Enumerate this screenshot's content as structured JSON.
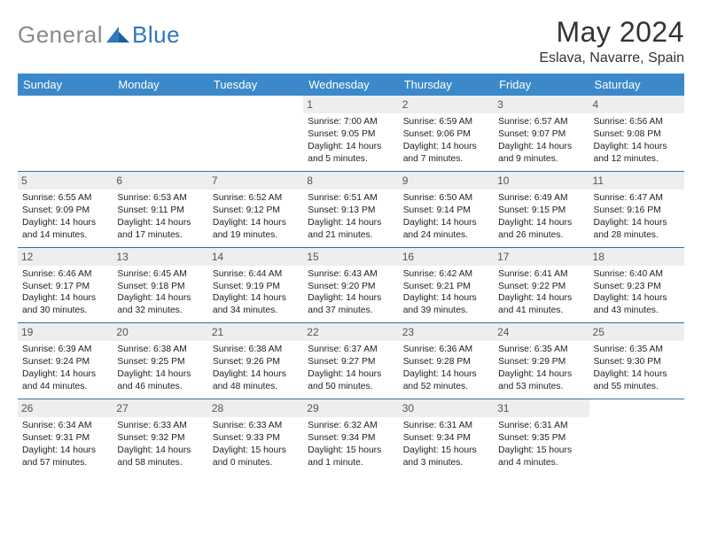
{
  "brand": {
    "part1": "General",
    "part2": "Blue"
  },
  "title": "May 2024",
  "location": "Eslava, Navarre, Spain",
  "dayHeaders": [
    "Sunday",
    "Monday",
    "Tuesday",
    "Wednesday",
    "Thursday",
    "Friday",
    "Saturday"
  ],
  "colors": {
    "headerBg": "#3b89c9",
    "headerText": "#ffffff",
    "dayNumBg": "#eceeef",
    "rowBorder": "#3b6fa0",
    "logoGray": "#888a8c",
    "logoBlue": "#2e78bb"
  },
  "weeks": [
    [
      {
        "n": "",
        "sunrise": "",
        "sunset": "",
        "day1": "",
        "day2": "",
        "empty": true
      },
      {
        "n": "",
        "sunrise": "",
        "sunset": "",
        "day1": "",
        "day2": "",
        "empty": true
      },
      {
        "n": "",
        "sunrise": "",
        "sunset": "",
        "day1": "",
        "day2": "",
        "empty": true
      },
      {
        "n": "1",
        "sunrise": "Sunrise: 7:00 AM",
        "sunset": "Sunset: 9:05 PM",
        "day1": "Daylight: 14 hours",
        "day2": "and 5 minutes."
      },
      {
        "n": "2",
        "sunrise": "Sunrise: 6:59 AM",
        "sunset": "Sunset: 9:06 PM",
        "day1": "Daylight: 14 hours",
        "day2": "and 7 minutes."
      },
      {
        "n": "3",
        "sunrise": "Sunrise: 6:57 AM",
        "sunset": "Sunset: 9:07 PM",
        "day1": "Daylight: 14 hours",
        "day2": "and 9 minutes."
      },
      {
        "n": "4",
        "sunrise": "Sunrise: 6:56 AM",
        "sunset": "Sunset: 9:08 PM",
        "day1": "Daylight: 14 hours",
        "day2": "and 12 minutes."
      }
    ],
    [
      {
        "n": "5",
        "sunrise": "Sunrise: 6:55 AM",
        "sunset": "Sunset: 9:09 PM",
        "day1": "Daylight: 14 hours",
        "day2": "and 14 minutes."
      },
      {
        "n": "6",
        "sunrise": "Sunrise: 6:53 AM",
        "sunset": "Sunset: 9:11 PM",
        "day1": "Daylight: 14 hours",
        "day2": "and 17 minutes."
      },
      {
        "n": "7",
        "sunrise": "Sunrise: 6:52 AM",
        "sunset": "Sunset: 9:12 PM",
        "day1": "Daylight: 14 hours",
        "day2": "and 19 minutes."
      },
      {
        "n": "8",
        "sunrise": "Sunrise: 6:51 AM",
        "sunset": "Sunset: 9:13 PM",
        "day1": "Daylight: 14 hours",
        "day2": "and 21 minutes."
      },
      {
        "n": "9",
        "sunrise": "Sunrise: 6:50 AM",
        "sunset": "Sunset: 9:14 PM",
        "day1": "Daylight: 14 hours",
        "day2": "and 24 minutes."
      },
      {
        "n": "10",
        "sunrise": "Sunrise: 6:49 AM",
        "sunset": "Sunset: 9:15 PM",
        "day1": "Daylight: 14 hours",
        "day2": "and 26 minutes."
      },
      {
        "n": "11",
        "sunrise": "Sunrise: 6:47 AM",
        "sunset": "Sunset: 9:16 PM",
        "day1": "Daylight: 14 hours",
        "day2": "and 28 minutes."
      }
    ],
    [
      {
        "n": "12",
        "sunrise": "Sunrise: 6:46 AM",
        "sunset": "Sunset: 9:17 PM",
        "day1": "Daylight: 14 hours",
        "day2": "and 30 minutes."
      },
      {
        "n": "13",
        "sunrise": "Sunrise: 6:45 AM",
        "sunset": "Sunset: 9:18 PM",
        "day1": "Daylight: 14 hours",
        "day2": "and 32 minutes."
      },
      {
        "n": "14",
        "sunrise": "Sunrise: 6:44 AM",
        "sunset": "Sunset: 9:19 PM",
        "day1": "Daylight: 14 hours",
        "day2": "and 34 minutes."
      },
      {
        "n": "15",
        "sunrise": "Sunrise: 6:43 AM",
        "sunset": "Sunset: 9:20 PM",
        "day1": "Daylight: 14 hours",
        "day2": "and 37 minutes."
      },
      {
        "n": "16",
        "sunrise": "Sunrise: 6:42 AM",
        "sunset": "Sunset: 9:21 PM",
        "day1": "Daylight: 14 hours",
        "day2": "and 39 minutes."
      },
      {
        "n": "17",
        "sunrise": "Sunrise: 6:41 AM",
        "sunset": "Sunset: 9:22 PM",
        "day1": "Daylight: 14 hours",
        "day2": "and 41 minutes."
      },
      {
        "n": "18",
        "sunrise": "Sunrise: 6:40 AM",
        "sunset": "Sunset: 9:23 PM",
        "day1": "Daylight: 14 hours",
        "day2": "and 43 minutes."
      }
    ],
    [
      {
        "n": "19",
        "sunrise": "Sunrise: 6:39 AM",
        "sunset": "Sunset: 9:24 PM",
        "day1": "Daylight: 14 hours",
        "day2": "and 44 minutes."
      },
      {
        "n": "20",
        "sunrise": "Sunrise: 6:38 AM",
        "sunset": "Sunset: 9:25 PM",
        "day1": "Daylight: 14 hours",
        "day2": "and 46 minutes."
      },
      {
        "n": "21",
        "sunrise": "Sunrise: 6:38 AM",
        "sunset": "Sunset: 9:26 PM",
        "day1": "Daylight: 14 hours",
        "day2": "and 48 minutes."
      },
      {
        "n": "22",
        "sunrise": "Sunrise: 6:37 AM",
        "sunset": "Sunset: 9:27 PM",
        "day1": "Daylight: 14 hours",
        "day2": "and 50 minutes."
      },
      {
        "n": "23",
        "sunrise": "Sunrise: 6:36 AM",
        "sunset": "Sunset: 9:28 PM",
        "day1": "Daylight: 14 hours",
        "day2": "and 52 minutes."
      },
      {
        "n": "24",
        "sunrise": "Sunrise: 6:35 AM",
        "sunset": "Sunset: 9:29 PM",
        "day1": "Daylight: 14 hours",
        "day2": "and 53 minutes."
      },
      {
        "n": "25",
        "sunrise": "Sunrise: 6:35 AM",
        "sunset": "Sunset: 9:30 PM",
        "day1": "Daylight: 14 hours",
        "day2": "and 55 minutes."
      }
    ],
    [
      {
        "n": "26",
        "sunrise": "Sunrise: 6:34 AM",
        "sunset": "Sunset: 9:31 PM",
        "day1": "Daylight: 14 hours",
        "day2": "and 57 minutes."
      },
      {
        "n": "27",
        "sunrise": "Sunrise: 6:33 AM",
        "sunset": "Sunset: 9:32 PM",
        "day1": "Daylight: 14 hours",
        "day2": "and 58 minutes."
      },
      {
        "n": "28",
        "sunrise": "Sunrise: 6:33 AM",
        "sunset": "Sunset: 9:33 PM",
        "day1": "Daylight: 15 hours",
        "day2": "and 0 minutes."
      },
      {
        "n": "29",
        "sunrise": "Sunrise: 6:32 AM",
        "sunset": "Sunset: 9:34 PM",
        "day1": "Daylight: 15 hours",
        "day2": "and 1 minute."
      },
      {
        "n": "30",
        "sunrise": "Sunrise: 6:31 AM",
        "sunset": "Sunset: 9:34 PM",
        "day1": "Daylight: 15 hours",
        "day2": "and 3 minutes."
      },
      {
        "n": "31",
        "sunrise": "Sunrise: 6:31 AM",
        "sunset": "Sunset: 9:35 PM",
        "day1": "Daylight: 15 hours",
        "day2": "and 4 minutes."
      },
      {
        "n": "",
        "sunrise": "",
        "sunset": "",
        "day1": "",
        "day2": "",
        "empty": true
      }
    ]
  ]
}
